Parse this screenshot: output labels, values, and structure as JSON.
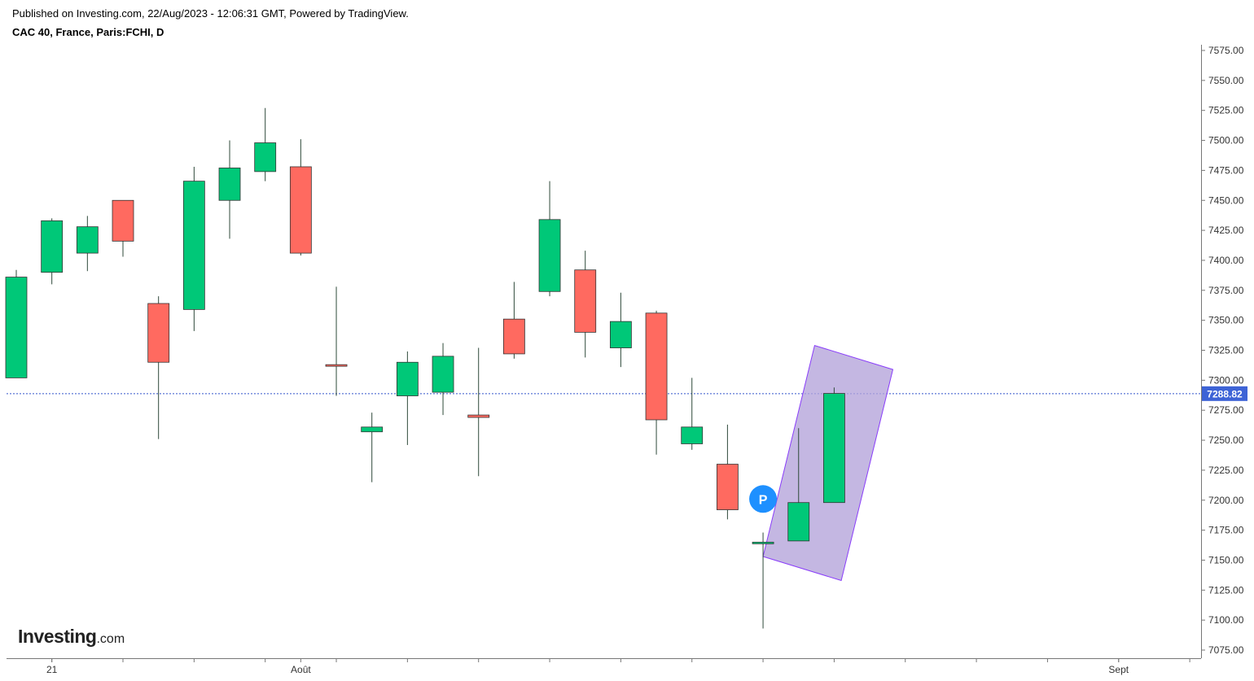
{
  "header": {
    "published": "Published on Investing.com, 22/Aug/2023 - 12:06:31 GMT, Powered by TradingView.",
    "symbol": "CAC 40, France, Paris:FCHI, D"
  },
  "logo": {
    "main": "Investing",
    "suffix": ".com"
  },
  "colors": {
    "up": "#00c878",
    "down": "#ff6a60",
    "wick": "#2f4a3a",
    "last_price_line": "#3355cc",
    "price_badge": "#3d63d6",
    "channel_fill": "#b3a3da",
    "channel_stroke": "#8a3dfa",
    "marker": "#1e90ff"
  },
  "chart_data": {
    "type": "candlestick",
    "y_ticks": [
      "7575.00",
      "7550.00",
      "7525.00",
      "7500.00",
      "7475.00",
      "7450.00",
      "7425.00",
      "7400.00",
      "7375.00",
      "7350.00",
      "7325.00",
      "7300.00",
      "7275.00",
      "7250.00",
      "7225.00",
      "7200.00",
      "7175.00",
      "7150.00",
      "7125.00",
      "7100.00",
      "7075.00"
    ],
    "ylim": [
      7070,
      7580
    ],
    "x_labels": [
      {
        "label": "21",
        "slot": 1
      },
      {
        "label": "Août",
        "slot": 8
      },
      {
        "label": "Sept",
        "slot": 31
      }
    ],
    "candles": [
      {
        "slot": 0,
        "open": 7302,
        "high": 7392,
        "low": 7302,
        "close": 7386
      },
      {
        "slot": 1,
        "open": 7390,
        "high": 7435,
        "low": 7380,
        "close": 7433
      },
      {
        "slot": 2,
        "open": 7406,
        "high": 7437,
        "low": 7391,
        "close": 7428
      },
      {
        "slot": 3,
        "open": 7450,
        "high": 7450,
        "low": 7403,
        "close": 7416
      },
      {
        "slot": 4,
        "open": 7364,
        "high": 7370,
        "low": 7251,
        "close": 7315
      },
      {
        "slot": 5,
        "open": 7359,
        "high": 7478,
        "low": 7341,
        "close": 7466
      },
      {
        "slot": 6,
        "open": 7450,
        "high": 7500,
        "low": 7418,
        "close": 7477
      },
      {
        "slot": 7,
        "open": 7474,
        "high": 7527,
        "low": 7466,
        "close": 7498
      },
      {
        "slot": 8,
        "open": 7478,
        "high": 7501,
        "low": 7404,
        "close": 7406
      },
      {
        "slot": 9,
        "open": 7313,
        "high": 7378,
        "low": 7287,
        "close": 7312
      },
      {
        "slot": 10,
        "open": 7257,
        "high": 7273,
        "low": 7215,
        "close": 7261
      },
      {
        "slot": 11,
        "open": 7287,
        "high": 7324,
        "low": 7246,
        "close": 7315
      },
      {
        "slot": 12,
        "open": 7290,
        "high": 7331,
        "low": 7271,
        "close": 7320
      },
      {
        "slot": 13,
        "open": 7271,
        "high": 7327,
        "low": 7220,
        "close": 7269
      },
      {
        "slot": 14,
        "open": 7351,
        "high": 7382,
        "low": 7318,
        "close": 7322
      },
      {
        "slot": 15,
        "open": 7374,
        "high": 7466,
        "low": 7370,
        "close": 7434
      },
      {
        "slot": 16,
        "open": 7392,
        "high": 7408,
        "low": 7319,
        "close": 7340
      },
      {
        "slot": 17,
        "open": 7327,
        "high": 7373,
        "low": 7311,
        "close": 7349
      },
      {
        "slot": 18,
        "open": 7356,
        "high": 7358,
        "low": 7238,
        "close": 7267
      },
      {
        "slot": 19,
        "open": 7247,
        "high": 7302,
        "low": 7242,
        "close": 7261
      },
      {
        "slot": 20,
        "open": 7230,
        "high": 7263,
        "low": 7184,
        "close": 7192
      },
      {
        "slot": 21,
        "open": 7164,
        "high": 7173,
        "low": 7093,
        "close": 7165
      },
      {
        "slot": 22,
        "open": 7166,
        "high": 7260,
        "low": 7166,
        "close": 7198
      },
      {
        "slot": 23,
        "open": 7198,
        "high": 7294,
        "low": 7198,
        "close": 7289
      }
    ],
    "last_price": 7288.82,
    "last_price_label": "7288.82",
    "marker": {
      "label": "P",
      "slot": 21,
      "value": 7201
    },
    "channel": [
      {
        "slot": 21,
        "value": 7153
      },
      {
        "slot": 22.45,
        "value": 7329
      },
      {
        "slot": 24.65,
        "value": 7309
      },
      {
        "slot": 23.2,
        "value": 7133
      }
    ]
  }
}
